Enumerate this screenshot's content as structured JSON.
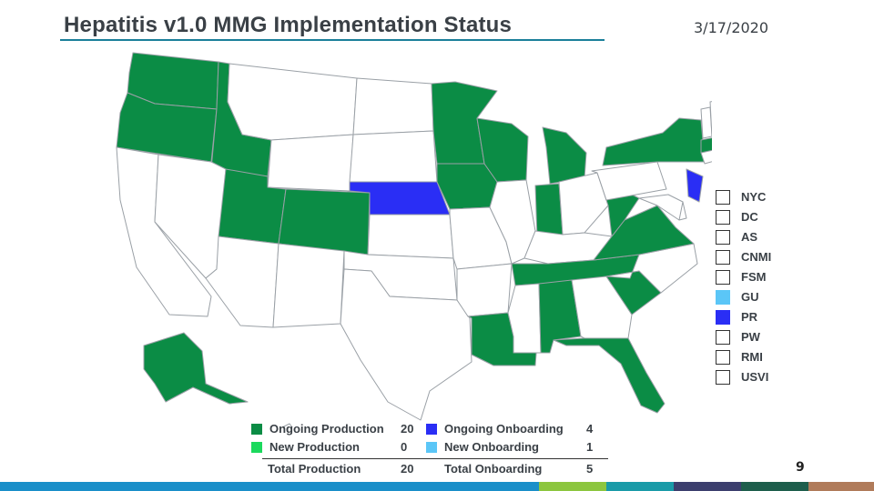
{
  "header": {
    "title": "Hepatitis v1.0 MMG Implementation Status",
    "date": "3/17/2020"
  },
  "colors": {
    "ongoing_production": "#0b8c45",
    "new_production": "#1bd95d",
    "ongoing_onboarding": "#2a2ef5",
    "new_onboarding": "#5bc6f7",
    "not_started": "#ffffff",
    "border": "#9aa0a6"
  },
  "territories": [
    {
      "code": "NYC",
      "status": "not_started"
    },
    {
      "code": "DC",
      "status": "not_started"
    },
    {
      "code": "AS",
      "status": "not_started"
    },
    {
      "code": "CNMI",
      "status": "not_started"
    },
    {
      "code": "FSM",
      "status": "not_started"
    },
    {
      "code": "GU",
      "status": "new_onboarding"
    },
    {
      "code": "PR",
      "status": "ongoing_onboarding"
    },
    {
      "code": "PW",
      "status": "not_started"
    },
    {
      "code": "RMI",
      "status": "not_started"
    },
    {
      "code": "USVI",
      "status": "not_started"
    }
  ],
  "legend": {
    "ongoing_production": {
      "label": "Ongoing Production",
      "count": "20"
    },
    "new_production": {
      "label": "New Production",
      "count": "0"
    },
    "ongoing_onboarding": {
      "label": "Ongoing Onboarding",
      "count": "4"
    },
    "new_onboarding": {
      "label": "New Onboarding",
      "count": "1"
    },
    "total_production": {
      "label": "Total Production",
      "count": "20"
    },
    "total_onboarding": {
      "label": "Total Onboarding",
      "count": "5"
    }
  },
  "states": {
    "ongoing_production": [
      "WA",
      "OR",
      "ID",
      "UT",
      "CO",
      "MN",
      "IA",
      "WI",
      "MI",
      "IN",
      "NY",
      "MA",
      "TN",
      "VA",
      "WV",
      "AL",
      "LA",
      "SC",
      "FL",
      "AK"
    ],
    "ongoing_onboarding": [
      "NE",
      "NJ",
      "RI"
    ],
    "new_onboarding": []
  },
  "page_number": "9",
  "footer_colors": [
    "#1a8fc9",
    "#8cc63f",
    "#1a9ba8",
    "#3c3f6e",
    "#1e5e4c",
    "#b07b5a"
  ]
}
